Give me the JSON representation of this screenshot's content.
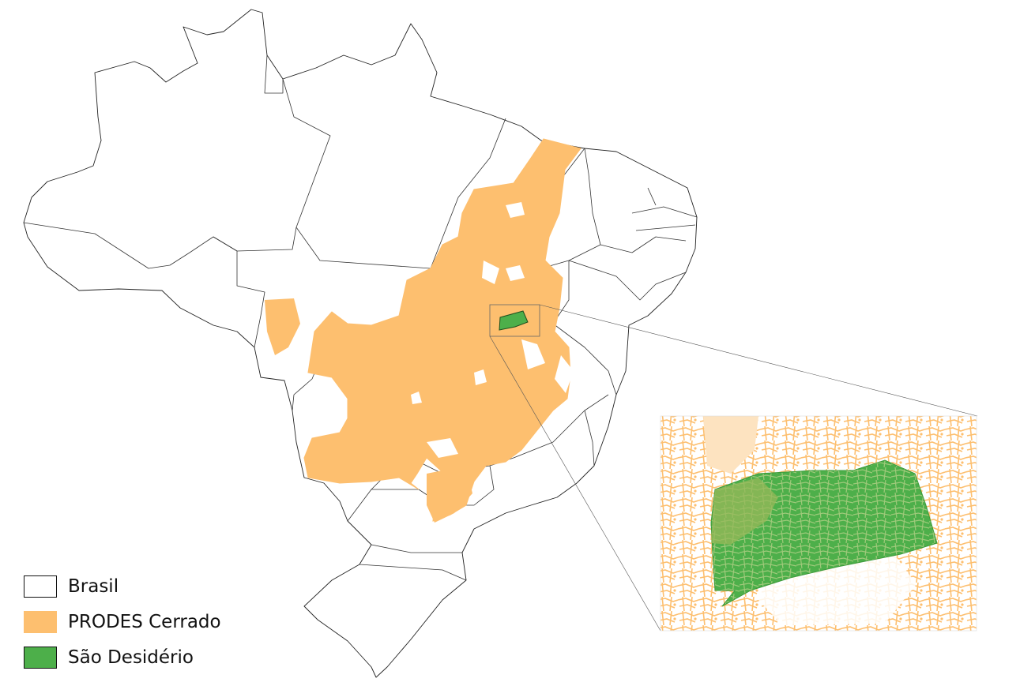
{
  "colors": {
    "brasil_fill": "#ffffff",
    "brasil_stroke": "#222222",
    "prodes": "#fdbf6f",
    "prodes_light": "#fde3c0",
    "sao_desiderio": "#4daf4a",
    "sao_desiderio_dark": "#3d9a3a"
  },
  "legend": {
    "items": [
      {
        "label": "Brasil",
        "swatch": "brasil-swatch"
      },
      {
        "label": "PRODES Cerrado",
        "swatch": "prodes-swatch"
      },
      {
        "label": "São Desidério",
        "swatch": "sao-desiderio-swatch"
      }
    ]
  }
}
